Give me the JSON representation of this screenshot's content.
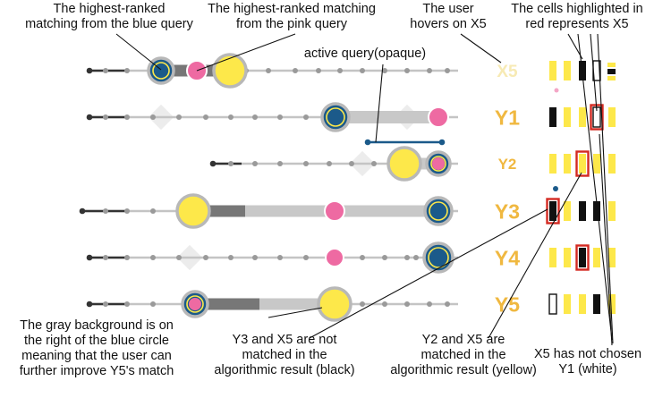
{
  "annotations": {
    "blue_top": [
      "The highest-ranked",
      "matching from the blue query"
    ],
    "pink_top": [
      "The highest-ranked matching",
      "from the pink query"
    ],
    "hover": [
      "The user",
      "hovers on X5"
    ],
    "red_cells": [
      "The cells highlighted in",
      "red represents X5"
    ],
    "active_query": "active query(opaque)",
    "gray_bg": [
      "The gray background is on",
      "the right of the blue circle",
      "meaning that the user can",
      "further improve Y5's match"
    ],
    "y3_x5": [
      "Y3 and X5 are not",
      "matched in the",
      "algorithmic result (black)"
    ],
    "y2_x5": [
      "Y2 and X5 are",
      "matched in the",
      "algorithmic result (yellow)"
    ],
    "x5_y1": [
      "X5 has not chosen",
      "Y1 (white)"
    ]
  },
  "rows": [
    {
      "label": "X5",
      "label_style": "faded"
    },
    {
      "label": "Y1",
      "label_style": "large"
    },
    {
      "label": "Y2",
      "label_style": "small"
    },
    {
      "label": "Y3",
      "label_style": "large"
    },
    {
      "label": "Y4",
      "label_style": "large"
    },
    {
      "label": "Y5",
      "label_style": "large"
    }
  ],
  "colors": {
    "blue": "#1b5a8a",
    "pink": "#ee6aa2",
    "yellow": "#fde84a",
    "gray_ring": "#b8b8b8",
    "label_orange": "#f0b840",
    "highlight_red": "#d42a22",
    "cell_yellow": "#fde84a",
    "cell_black": "#111111"
  },
  "cell_legend": {
    "yellow": "matched in the algorithmic result",
    "black": "not matched in the algorithmic result",
    "white": "not chosen"
  }
}
